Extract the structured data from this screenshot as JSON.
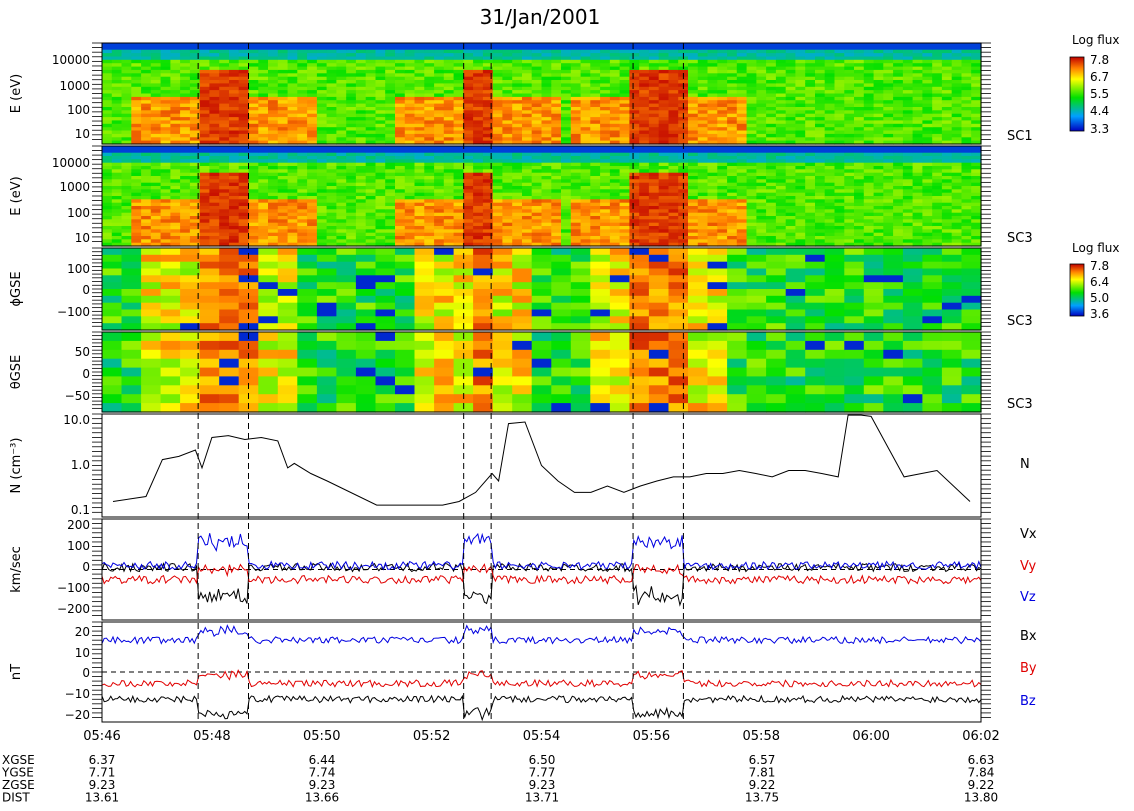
{
  "title": "31/Jan/2001",
  "colorbars": [
    {
      "label": "Log flux",
      "ticks": [
        "7.8",
        "6.7",
        "5.5",
        "4.4",
        "3.3"
      ]
    },
    {
      "label": "Log flux",
      "ticks": [
        "7.8",
        "6.4",
        "5.0",
        "3.6"
      ]
    }
  ],
  "chart_data": [
    {
      "type": "heatmap",
      "id": "e1",
      "ylabel": "E (eV)",
      "yticks": [
        "10000",
        "1000",
        "100",
        "10"
      ],
      "right_label": "SC1",
      "yscale": "log",
      "yrange": [
        5,
        30000
      ]
    },
    {
      "type": "heatmap",
      "id": "e3",
      "ylabel": "E (eV)",
      "yticks": [
        "10000",
        "1000",
        "100",
        "10"
      ],
      "right_label": "SC3",
      "yscale": "log",
      "yrange": [
        5,
        30000
      ]
    },
    {
      "type": "heatmap",
      "id": "phi",
      "ylabel": "ϕGSE",
      "yticks": [
        "100",
        "0",
        "−100"
      ],
      "right_label": "SC3",
      "yrange": [
        -180,
        180
      ]
    },
    {
      "type": "heatmap",
      "id": "theta",
      "ylabel": "θGSE",
      "yticks": [
        "50",
        "0",
        "−50"
      ],
      "right_label": "SC3",
      "yrange": [
        -90,
        90
      ]
    },
    {
      "type": "line",
      "id": "n",
      "ylabel": "N (cm⁻³)",
      "yticks": [
        "10.0",
        "1.0",
        "0.1"
      ],
      "yscale": "log",
      "yrange": [
        0.1,
        10
      ],
      "series": [
        {
          "name": "N",
          "color": "#000000",
          "x": [
            5.77,
            5.78,
            5.785,
            5.79,
            5.795,
            5.797,
            5.8,
            5.805,
            5.81,
            5.815,
            5.82,
            5.823,
            5.825,
            5.83,
            5.835,
            5.85,
            5.87,
            5.875,
            5.88,
            5.885,
            5.887,
            5.89,
            5.895,
            5.9,
            5.905,
            5.91,
            5.915,
            5.92,
            5.925,
            5.93,
            5.935,
            5.94,
            5.945,
            5.95,
            5.955,
            5.96,
            5.965,
            5.97,
            5.975,
            5.98,
            5.985,
            5.99,
            5.993,
            5.997,
            6.0,
            6.01,
            6.02,
            6.03
          ],
          "y": [
            0.2,
            0.25,
            1.3,
            1.5,
            2,
            0.9,
            3.5,
            3.8,
            3.2,
            3.5,
            3.0,
            0.9,
            1.1,
            0.7,
            0.5,
            0.17,
            0.17,
            0.2,
            0.3,
            0.7,
            0.5,
            6.5,
            7,
            1.0,
            0.5,
            0.3,
            0.3,
            0.4,
            0.3,
            0.4,
            0.5,
            0.6,
            0.6,
            0.7,
            0.7,
            0.8,
            0.7,
            0.6,
            0.8,
            0.8,
            0.7,
            0.6,
            9.5,
            9.5,
            9.0,
            0.6,
            0.8,
            0.2
          ]
        }
      ],
      "right_label": "N"
    },
    {
      "type": "line",
      "id": "v",
      "ylabel": "km/sec",
      "yticks": [
        "200",
        "100",
        "0",
        "−100",
        "−200"
      ],
      "yrange": [
        -250,
        250
      ],
      "series": [
        {
          "name": "Vx",
          "color": "#000000"
        },
        {
          "name": "Vy",
          "color": "#e00000"
        },
        {
          "name": "Vz",
          "color": "#0000e0"
        }
      ]
    },
    {
      "type": "line",
      "id": "b",
      "ylabel": "nT",
      "yticks": [
        "20",
        "10",
        "0",
        "−10",
        "−20"
      ],
      "yrange": [
        -22,
        22
      ],
      "series": [
        {
          "name": "Bx",
          "color": "#000000"
        },
        {
          "name": "By",
          "color": "#e00000"
        },
        {
          "name": "Bz",
          "color": "#0000e0"
        }
      ]
    }
  ],
  "time_axis": {
    "labels": [
      "05:46",
      "05:48",
      "05:50",
      "05:52",
      "05:54",
      "05:56",
      "05:58",
      "06:00",
      "06:02"
    ],
    "dashed_lines": [
      "05:47:45",
      "05:48:40",
      "05:52:35",
      "05:53:05",
      "05:55:40",
      "05:56:35"
    ]
  },
  "ephemeris": {
    "rows": [
      {
        "name": "XGSE",
        "values": [
          "6.37",
          "6.44",
          "6.50",
          "6.57",
          "6.63"
        ]
      },
      {
        "name": "YGSE",
        "values": [
          "7.71",
          "7.74",
          "7.77",
          "7.81",
          "7.84"
        ]
      },
      {
        "name": "ZGSE",
        "values": [
          "9.23",
          "9.23",
          "9.23",
          "9.22",
          "9.22"
        ]
      },
      {
        "name": "DIST",
        "values": [
          "13.61",
          "13.66",
          "13.71",
          "13.75",
          "13.80"
        ]
      }
    ]
  }
}
